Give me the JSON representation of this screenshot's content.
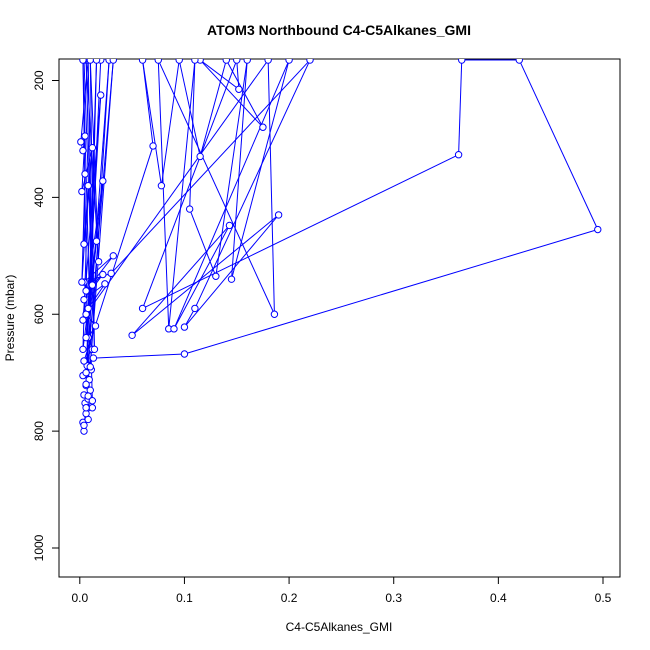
{
  "chart_data": {
    "type": "line",
    "title": "ATOM3 Northbound C4-C5Alkanes_GMI",
    "xlabel": "C4-C5Alkanes_GMI",
    "ylabel": "Pressure (mbar)",
    "xlim": [
      0,
      0.5
    ],
    "ylim": [
      1050,
      180
    ],
    "y_reversed": true,
    "grid": false,
    "legend": "none",
    "x_ticks": [
      0.0,
      0.1,
      0.2,
      0.3,
      0.4,
      0.5
    ],
    "x_tick_labels": [
      "0.0",
      "0.1",
      "0.2",
      "0.3",
      "0.4",
      "0.5"
    ],
    "y_ticks": [
      200,
      400,
      600,
      800,
      1000
    ],
    "y_tick_labels": [
      "200",
      "400",
      "600",
      "800",
      "1000"
    ],
    "series_color": "#0000ff",
    "series": [
      {
        "points": [
          [
            0.004,
            800
          ],
          [
            0.003,
            785
          ],
          [
            0.008,
            780
          ],
          [
            0.006,
            770
          ],
          [
            0.012,
            760
          ],
          [
            0.005,
            752
          ],
          [
            0.008,
            745
          ],
          [
            0.004,
            738
          ],
          [
            0.01,
            730
          ],
          [
            0.006,
            722
          ],
          [
            0.009,
            712
          ],
          [
            0.003,
            705
          ],
          [
            0.011,
            695
          ],
          [
            0.007,
            688
          ],
          [
            0.013,
            675
          ],
          [
            0.1,
            668
          ],
          [
            0.495,
            455
          ],
          [
            0.42,
            165
          ],
          [
            0.365,
            165
          ],
          [
            0.362,
            327
          ],
          [
            0.06,
            590
          ],
          [
            0.15,
            165
          ],
          [
            0.152,
            215
          ],
          [
            0.115,
            165
          ],
          [
            0.175,
            280
          ],
          [
            0.14,
            165
          ],
          [
            0.115,
            330
          ],
          [
            0.095,
            165
          ],
          [
            0.078,
            380
          ],
          [
            0.06,
            165
          ],
          [
            0.07,
            312
          ],
          [
            0.004,
            680
          ],
          [
            0.012,
            660
          ],
          [
            0.008,
            640
          ],
          [
            0.015,
            620
          ],
          [
            0.006,
            600
          ],
          [
            0.18,
            165
          ],
          [
            0.186,
            600
          ],
          [
            0.075,
            165
          ],
          [
            0.085,
            625
          ],
          [
            0.11,
            165
          ],
          [
            0.105,
            420
          ],
          [
            0.13,
            535
          ],
          [
            0.16,
            165
          ],
          [
            0.145,
            540
          ],
          [
            0.2,
            165
          ],
          [
            0.09,
            625
          ],
          [
            0.143,
            448
          ],
          [
            0.05,
            636
          ],
          [
            0.19,
            430
          ],
          [
            0.1,
            622
          ],
          [
            0.11,
            590
          ],
          [
            0.22,
            165
          ],
          [
            0.03,
            530
          ],
          [
            0.004,
            545
          ],
          [
            0.032,
            500
          ],
          [
            0.006,
            560
          ],
          [
            0.022,
            532
          ],
          [
            0.004,
            575
          ],
          [
            0.024,
            548
          ],
          [
            0.008,
            590
          ],
          [
            0.022,
            372
          ],
          [
            0.003,
            610
          ],
          [
            0.02,
            225
          ],
          [
            0.006,
            640
          ],
          [
            0.016,
            475
          ],
          [
            0.003,
            660
          ],
          [
            0.008,
            380
          ],
          [
            0.002,
            545
          ],
          [
            0.005,
            360
          ],
          [
            0.004,
            480
          ],
          [
            0.012,
            315
          ],
          [
            0.002,
            390
          ],
          [
            0.005,
            295
          ],
          [
            0.003,
            320
          ],
          [
            0.001,
            305
          ],
          [
            0.008,
            165
          ],
          [
            0.012,
            550
          ],
          [
            0.006,
            165
          ],
          [
            0.018,
            510
          ],
          [
            0.01,
            165
          ],
          [
            0.014,
            660
          ],
          [
            0.004,
            165
          ],
          [
            0.02,
            165
          ],
          [
            0.006,
            700
          ],
          [
            0.028,
            165
          ],
          [
            0.01,
            690
          ],
          [
            0.032,
            165
          ],
          [
            0.006,
            720
          ],
          [
            0.016,
            165
          ],
          [
            0.008,
            740
          ],
          [
            0.003,
            165
          ],
          [
            0.012,
            748
          ],
          [
            0.006,
            760
          ],
          [
            0.004,
            790
          ]
        ]
      }
    ]
  }
}
